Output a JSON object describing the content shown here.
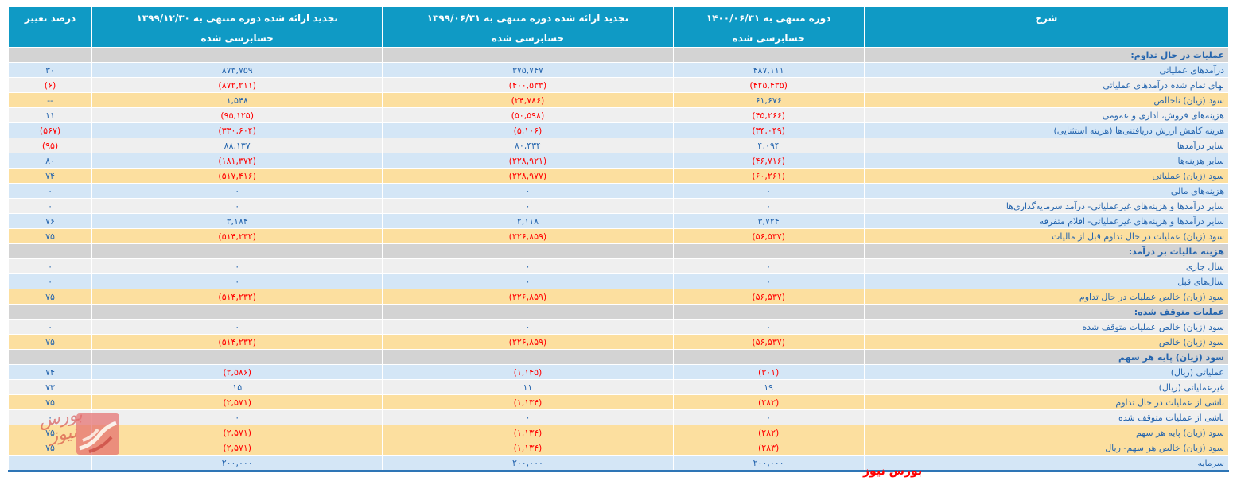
{
  "table": {
    "headers": {
      "description": "شرح",
      "period_current": {
        "line1": "دوره منتهی به ۱۴۰۰/۰۶/۳۱",
        "line2": "حسابرسی شده"
      },
      "period_prev_half": {
        "line1": "تجدید ارائه شده دوره منتهی به ۱۳۹۹/۰۶/۳۱",
        "line2": "حسابرسی شده"
      },
      "period_prev_year": {
        "line1": "تجدید ارائه شده دوره منتهی به ۱۳۹۹/۱۲/۳۰",
        "line2": "حسابرسی شده"
      },
      "change_percent": "درصد تغییر"
    },
    "rows": [
      {
        "type": "section",
        "label": "عملیات در حال تداوم:"
      },
      {
        "type": "data",
        "variant": "blue",
        "label": "درآمدهای عملیاتی",
        "values": [
          "۴۸۷,۱۱۱",
          "۳۷۵,۷۴۷",
          "۸۷۳,۷۵۹"
        ],
        "change": "۳۰"
      },
      {
        "type": "data",
        "variant": "white",
        "label": "بهای تمام شده درآمدهای عملیاتی",
        "values": [
          "(۴۲۵,۴۳۵)",
          "(۴۰۰,۵۳۳)",
          "(۸۷۲,۲۱۱)"
        ],
        "change": "(۶)"
      },
      {
        "type": "data",
        "variant": "yellow",
        "label": "سود (زیان) ناخالص",
        "values": [
          "۶۱,۶۷۶",
          "(۲۴,۷۸۶)",
          "۱,۵۴۸"
        ],
        "change": "--"
      },
      {
        "type": "data",
        "variant": "white",
        "label": "هزینه‌های فروش، اداری و عمومی",
        "values": [
          "(۴۵,۲۶۶)",
          "(۵۰,۵۹۸)",
          "(۹۵,۱۲۵)"
        ],
        "change": "۱۱"
      },
      {
        "type": "data",
        "variant": "blue",
        "label": "هزینه کاهش ارزش دریافتنی‌ها (هزینه استثنایی)",
        "values": [
          "(۳۴,۰۴۹)",
          "(۵,۱۰۶)",
          "(۳۳۰,۶۰۴)"
        ],
        "change": "(۵۶۷)"
      },
      {
        "type": "data",
        "variant": "white",
        "label": "سایر درآمدها",
        "values": [
          "۴,۰۹۴",
          "۸۰,۴۳۴",
          "۸۸,۱۳۷"
        ],
        "change": "(۹۵)"
      },
      {
        "type": "data",
        "variant": "blue",
        "label": "سایر هزینه‌ها",
        "values": [
          "(۴۶,۷۱۶)",
          "(۲۲۸,۹۲۱)",
          "(۱۸۱,۳۷۲)"
        ],
        "change": "۸۰"
      },
      {
        "type": "data",
        "variant": "yellow",
        "label": "سود (زیان) عملیاتی",
        "values": [
          "(۶۰,۲۶۱)",
          "(۲۲۸,۹۷۷)",
          "(۵۱۷,۴۱۶)"
        ],
        "change": "۷۴"
      },
      {
        "type": "data",
        "variant": "blue",
        "label": "هزینه‌های مالی",
        "values": [
          "۰",
          "۰",
          "۰"
        ],
        "change": "۰"
      },
      {
        "type": "data",
        "variant": "white",
        "label": "سایر درآمدها و هزینه‌های غیرعملیاتی- درآمد سرمایه‌گذاری‌ها",
        "values": [
          "۰",
          "۰",
          "۰"
        ],
        "change": "۰"
      },
      {
        "type": "data",
        "variant": "blue",
        "label": "سایر درآمدها و هزینه‌های غیرعملیاتی- اقلام متفرقه",
        "values": [
          "۳,۷۲۴",
          "۲,۱۱۸",
          "۳,۱۸۴"
        ],
        "change": "۷۶"
      },
      {
        "type": "data",
        "variant": "yellow",
        "label": "سود (زیان) عملیات در حال تداوم قبل از مالیات",
        "values": [
          "(۵۶,۵۳۷)",
          "(۲۲۶,۸۵۹)",
          "(۵۱۴,۲۳۲)"
        ],
        "change": "۷۵"
      },
      {
        "type": "section",
        "label": "هزینه مالیات بر درآمد:"
      },
      {
        "type": "data",
        "variant": "white",
        "label": "سال جاری",
        "values": [
          "۰",
          "۰",
          "۰"
        ],
        "change": "۰"
      },
      {
        "type": "data",
        "variant": "blue",
        "label": "سال‌های قبل",
        "values": [
          "۰",
          "۰",
          "۰"
        ],
        "change": "۰"
      },
      {
        "type": "data",
        "variant": "yellow",
        "label": "سود (زیان) خالص عملیات در حال تداوم",
        "values": [
          "(۵۶,۵۳۷)",
          "(۲۲۶,۸۵۹)",
          "(۵۱۴,۲۳۲)"
        ],
        "change": "۷۵"
      },
      {
        "type": "section",
        "label": "عملیات متوقف شده:"
      },
      {
        "type": "data",
        "variant": "white",
        "label": "سود (زیان) خالص عملیات متوقف شده",
        "values": [
          "۰",
          "۰",
          "۰"
        ],
        "change": "۰"
      },
      {
        "type": "data",
        "variant": "yellow",
        "label": "سود (زیان) خالص",
        "values": [
          "(۵۶,۵۳۷)",
          "(۲۲۶,۸۵۹)",
          "(۵۱۴,۲۳۲)"
        ],
        "change": "۷۵"
      },
      {
        "type": "section",
        "label": "سود (زیان) پایه هر سهم"
      },
      {
        "type": "data",
        "variant": "blue",
        "label": "عملیاتی (ریال)",
        "values": [
          "(۳۰۱)",
          "(۱,۱۴۵)",
          "(۲,۵۸۶)"
        ],
        "change": "۷۴"
      },
      {
        "type": "data",
        "variant": "white",
        "label": "غیرعملیاتی (ریال)",
        "values": [
          "۱۹",
          "۱۱",
          "۱۵"
        ],
        "change": "۷۳"
      },
      {
        "type": "data",
        "variant": "yellow",
        "label": "ناشی از عملیات در حال تداوم",
        "values": [
          "(۲۸۲)",
          "(۱,۱۳۴)",
          "(۲,۵۷۱)"
        ],
        "change": "۷۵"
      },
      {
        "type": "data",
        "variant": "white",
        "label": "ناشی از عملیات متوقف شده",
        "values": [
          "۰",
          "۰",
          "۰"
        ],
        "change": "۰"
      },
      {
        "type": "data",
        "variant": "yellow",
        "label": "سود (زیان) پایه هر سهم",
        "values": [
          "(۲۸۲)",
          "(۱,۱۳۴)",
          "(۲,۵۷۱)"
        ],
        "change": "۷۵"
      },
      {
        "type": "data",
        "variant": "yellow",
        "label": "سود (زیان) خالص هر سهم- ریال",
        "values": [
          "(۲۸۳)",
          "(۱,۱۳۴)",
          "(۲,۵۷۱)"
        ],
        "change": "۷۵"
      },
      {
        "type": "data",
        "variant": "blue",
        "label": "سرمایه",
        "values": [
          "۲۰۰,۰۰۰",
          "۲۰۰,۰۰۰",
          "۲۰۰,۰۰۰"
        ],
        "change": ""
      }
    ]
  },
  "watermark": {
    "bottom_text": "بورس نیوز",
    "logo_text": "بورس نیوز"
  },
  "colors": {
    "header_bg": "#0F9AC5",
    "row_blue": "#D4E6F6",
    "row_white": "#EFEFEF",
    "row_yellow": "#FCDF9F",
    "row_section": "#D3D3D3",
    "text_primary": "#2565AE",
    "text_negative": "#FF0000",
    "bottom_border": "#2E75B6",
    "watermark_red": "#FF0000"
  }
}
